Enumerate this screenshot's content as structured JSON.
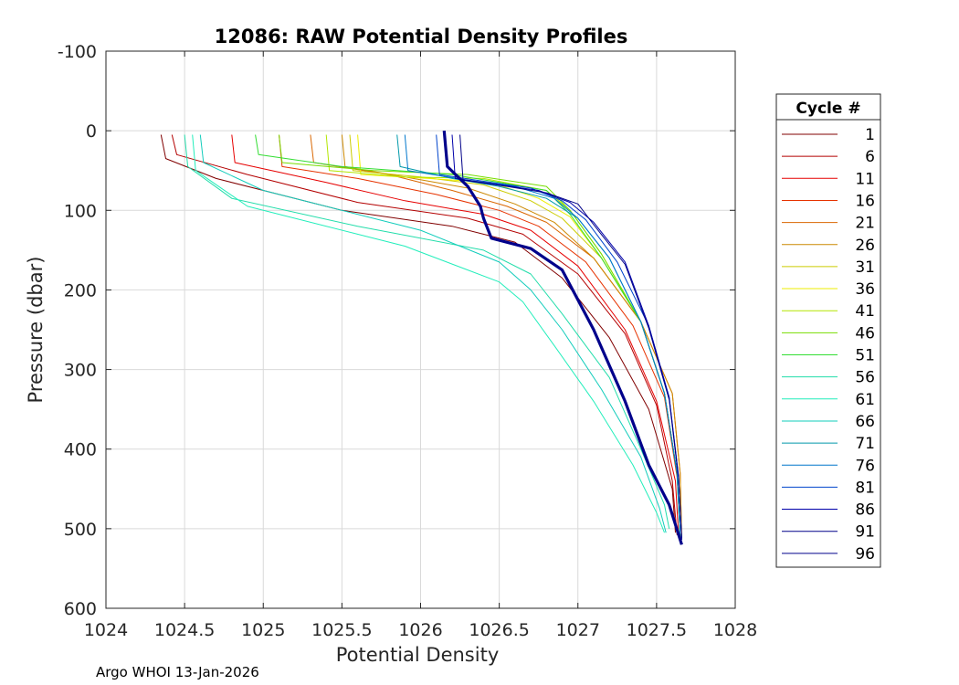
{
  "chart_data": {
    "type": "line",
    "title": "12086: RAW Potential Density Profiles",
    "xlabel": "Potential Density",
    "ylabel": "Pressure (dbar)",
    "xlim": [
      1024,
      1028
    ],
    "ylim": [
      -100,
      600
    ],
    "y_reversed": true,
    "grid": true,
    "x_ticks": [
      1024,
      1024.5,
      1025,
      1025.5,
      1026,
      1026.5,
      1027,
      1027.5,
      1028
    ],
    "x_tick_labels": [
      "1024",
      "1024.5",
      "1025",
      "1025.5",
      "1026",
      "1026.5",
      "1027",
      "1027.5",
      "1028"
    ],
    "y_ticks": [
      -100,
      0,
      100,
      200,
      300,
      400,
      500,
      600
    ],
    "y_tick_labels": [
      "-100",
      "0",
      "100",
      "200",
      "300",
      "400",
      "500",
      "600"
    ],
    "legend": {
      "title": "Cycle #",
      "placement": "outside-right",
      "entries": [
        {
          "label": "1",
          "color": "#800000"
        },
        {
          "label": "6",
          "color": "#b30000"
        },
        {
          "label": "11",
          "color": "#e60000"
        },
        {
          "label": "16",
          "color": "#e63300"
        },
        {
          "label": "21",
          "color": "#d96600"
        },
        {
          "label": "26",
          "color": "#cc8800"
        },
        {
          "label": "31",
          "color": "#cccc00"
        },
        {
          "label": "36",
          "color": "#eeee00"
        },
        {
          "label": "41",
          "color": "#b3e600"
        },
        {
          "label": "46",
          "color": "#77dd00"
        },
        {
          "label": "51",
          "color": "#33dd33"
        },
        {
          "label": "56",
          "color": "#22ddaa"
        },
        {
          "label": "61",
          "color": "#22eebb"
        },
        {
          "label": "66",
          "color": "#11ccbb"
        },
        {
          "label": "71",
          "color": "#0099aa"
        },
        {
          "label": "76",
          "color": "#0077cc"
        },
        {
          "label": "81",
          "color": "#0044cc"
        },
        {
          "label": "86",
          "color": "#0000aa"
        },
        {
          "label": "91",
          "color": "#000088"
        },
        {
          "label": "96",
          "color": "#00008b"
        }
      ]
    },
    "series": [
      {
        "name": "1",
        "color": "#800000",
        "x": [
          1024.35,
          1024.38,
          1024.7,
          1025.5,
          1026.2,
          1026.6,
          1026.9,
          1027.2,
          1027.45,
          1027.6,
          1027.62
        ],
        "y": [
          5,
          35,
          60,
          100,
          120,
          140,
          185,
          260,
          350,
          450,
          505
        ]
      },
      {
        "name": "6",
        "color": "#b30000",
        "x": [
          1024.42,
          1024.45,
          1024.9,
          1025.6,
          1026.3,
          1026.65,
          1027.0,
          1027.3,
          1027.5,
          1027.6,
          1027.63
        ],
        "y": [
          5,
          30,
          55,
          90,
          110,
          130,
          180,
          255,
          345,
          440,
          508
        ]
      },
      {
        "name": "11",
        "color": "#e60000",
        "x": [
          1024.8,
          1024.82,
          1025.4,
          1025.9,
          1026.4,
          1026.7,
          1027.0,
          1027.3,
          1027.5,
          1027.62,
          1027.64
        ],
        "y": [
          5,
          40,
          65,
          88,
          105,
          125,
          170,
          250,
          340,
          440,
          510
        ]
      },
      {
        "name": "16",
        "color": "#e63300",
        "x": [
          1025.1,
          1025.12,
          1025.6,
          1026.1,
          1026.5,
          1026.75,
          1027.05,
          1027.35,
          1027.55,
          1027.63,
          1027.65
        ],
        "y": [
          5,
          45,
          60,
          80,
          100,
          120,
          165,
          245,
          335,
          435,
          510
        ]
      },
      {
        "name": "21",
        "color": "#d96600",
        "x": [
          1025.3,
          1025.32,
          1025.8,
          1026.2,
          1026.55,
          1026.8,
          1027.1,
          1027.4,
          1027.6,
          1027.65,
          1027.66
        ],
        "y": [
          5,
          40,
          55,
          75,
          95,
          115,
          160,
          240,
          330,
          430,
          512
        ]
      },
      {
        "name": "26",
        "color": "#cc8800",
        "x": [
          1025.5,
          1025.52,
          1025.9,
          1026.3,
          1026.6,
          1026.85,
          1027.1,
          1027.4,
          1027.6,
          1027.65,
          1027.66
        ],
        "y": [
          5,
          45,
          58,
          72,
          92,
          115,
          160,
          240,
          330,
          430,
          512
        ]
      },
      {
        "name": "31",
        "color": "#cccc00",
        "x": [
          1025.55,
          1025.57,
          1026.0,
          1026.4,
          1026.7,
          1026.9,
          1027.15,
          1027.4,
          1027.55,
          1027.63,
          1027.65
        ],
        "y": [
          5,
          50,
          58,
          68,
          88,
          110,
          160,
          240,
          330,
          430,
          510
        ]
      },
      {
        "name": "36",
        "color": "#eeee00",
        "x": [
          1025.6,
          1025.62,
          1026.05,
          1026.45,
          1026.75,
          1026.95,
          1027.15,
          1027.4,
          1027.55,
          1027.63,
          1027.65
        ],
        "y": [
          5,
          55,
          60,
          65,
          85,
          108,
          160,
          240,
          330,
          430,
          510
        ]
      },
      {
        "name": "41",
        "color": "#b3e600",
        "x": [
          1025.4,
          1025.42,
          1025.9,
          1026.4,
          1026.8,
          1026.95,
          1027.15,
          1027.4,
          1027.55,
          1027.63,
          1027.65
        ],
        "y": [
          5,
          50,
          58,
          60,
          75,
          100,
          155,
          240,
          330,
          430,
          510
        ]
      },
      {
        "name": "46",
        "color": "#77dd00",
        "x": [
          1025.1,
          1025.12,
          1025.7,
          1026.3,
          1026.8,
          1026.95,
          1027.15,
          1027.4,
          1027.55,
          1027.63,
          1027.65
        ],
        "y": [
          5,
          40,
          50,
          55,
          70,
          100,
          155,
          240,
          330,
          430,
          510
        ]
      },
      {
        "name": "51",
        "color": "#33dd33",
        "x": [
          1024.95,
          1024.97,
          1025.5,
          1026.2,
          1026.8,
          1026.95,
          1027.15,
          1027.4,
          1027.55,
          1027.63,
          1027.65
        ],
        "y": [
          5,
          30,
          45,
          55,
          75,
          105,
          160,
          240,
          330,
          430,
          510
        ]
      },
      {
        "name": "56",
        "color": "#22ddaa",
        "x": [
          1024.5,
          1024.52,
          1024.8,
          1025.6,
          1026.4,
          1026.7,
          1026.9,
          1027.2,
          1027.4,
          1027.55,
          1027.58
        ],
        "y": [
          5,
          45,
          85,
          120,
          150,
          180,
          230,
          310,
          400,
          470,
          500
        ]
      },
      {
        "name": "61",
        "color": "#22eebb",
        "x": [
          1024.55,
          1024.57,
          1024.9,
          1025.9,
          1026.5,
          1026.65,
          1026.85,
          1027.1,
          1027.35,
          1027.5,
          1027.55
        ],
        "y": [
          5,
          50,
          95,
          145,
          190,
          215,
          270,
          340,
          420,
          480,
          505
        ]
      },
      {
        "name": "66",
        "color": "#11ccbb",
        "x": [
          1024.6,
          1024.62,
          1025.0,
          1026.0,
          1026.5,
          1026.7,
          1026.9,
          1027.15,
          1027.4,
          1027.52,
          1027.56
        ],
        "y": [
          5,
          40,
          75,
          125,
          165,
          200,
          250,
          325,
          410,
          475,
          505
        ]
      },
      {
        "name": "71",
        "color": "#0099aa",
        "x": [
          1025.85,
          1025.87,
          1026.2,
          1026.5,
          1026.8,
          1027.0,
          1027.2,
          1027.4,
          1027.55,
          1027.63,
          1027.65
        ],
        "y": [
          5,
          45,
          60,
          70,
          85,
          110,
          160,
          240,
          330,
          430,
          510
        ]
      },
      {
        "name": "76",
        "color": "#0077cc",
        "x": [
          1025.9,
          1025.92,
          1026.3,
          1026.6,
          1026.85,
          1027.0,
          1027.2,
          1027.4,
          1027.55,
          1027.63,
          1027.65
        ],
        "y": [
          5,
          50,
          62,
          70,
          85,
          110,
          160,
          240,
          330,
          430,
          510
        ]
      },
      {
        "name": "81",
        "color": "#0044cc",
        "x": [
          1026.1,
          1026.12,
          1026.45,
          1026.7,
          1026.9,
          1027.05,
          1027.25,
          1027.45,
          1027.58,
          1027.64,
          1027.66
        ],
        "y": [
          5,
          55,
          65,
          72,
          88,
          112,
          165,
          245,
          335,
          435,
          512
        ]
      },
      {
        "name": "86",
        "color": "#0000aa",
        "x": [
          1026.2,
          1026.22,
          1026.5,
          1026.75,
          1026.95,
          1027.1,
          1027.3,
          1027.45,
          1027.58,
          1027.64,
          1027.66
        ],
        "y": [
          5,
          60,
          68,
          75,
          90,
          115,
          165,
          245,
          335,
          435,
          512
        ]
      },
      {
        "name": "91",
        "color": "#000088",
        "x": [
          1026.25,
          1026.27,
          1026.55,
          1026.8,
          1027.0,
          1027.1,
          1027.3,
          1027.45,
          1027.58,
          1027.64,
          1027.66
        ],
        "y": [
          5,
          62,
          70,
          78,
          92,
          118,
          168,
          248,
          338,
          438,
          514
        ]
      },
      {
        "name": "96",
        "color": "#00008b",
        "x": [
          1026.15,
          1026.17,
          1026.3,
          1026.38,
          1026.4,
          1026.45,
          1026.7,
          1026.9,
          1027.1,
          1027.3,
          1027.45,
          1027.58,
          1027.66
        ],
        "y": [
          0,
          45,
          70,
          95,
          110,
          135,
          148,
          175,
          250,
          340,
          420,
          470,
          520
        ]
      }
    ]
  },
  "footer": {
    "text": "Argo WHOI 13-Jan-2026"
  }
}
